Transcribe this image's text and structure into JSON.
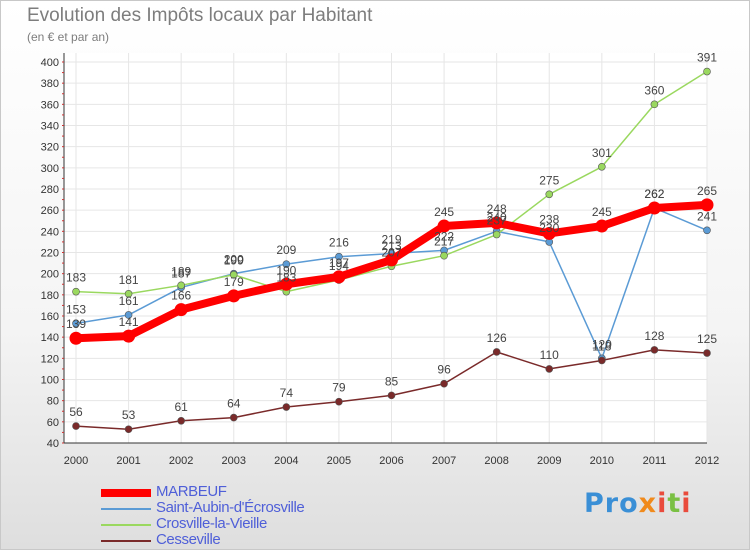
{
  "title": "Evolution des Impôts locaux par Habitant",
  "subtitle": "(en € et par an)",
  "brand": {
    "text": "Proxiti",
    "parts": [
      "Pro",
      "x",
      "i",
      "t",
      "i"
    ]
  },
  "chart_data": {
    "type": "line",
    "title": "Evolution des Impôts locaux par Habitant",
    "subtitle": "(en € et par an)",
    "xlabel": "",
    "ylabel": "",
    "ylim": [
      40,
      410
    ],
    "yticks": [
      40,
      60,
      80,
      100,
      120,
      140,
      160,
      180,
      200,
      220,
      240,
      260,
      280,
      300,
      320,
      340,
      360,
      380,
      400
    ],
    "x": [
      "2000",
      "2001",
      "2002",
      "2003",
      "2004",
      "2005",
      "2006",
      "2007",
      "2008",
      "2009",
      "2010",
      "2011",
      "2012"
    ],
    "grid": true,
    "legend_position": "bottom-left",
    "series": [
      {
        "name": "MARBEUF",
        "color": "#ff0000",
        "thick": true,
        "values": [
          139,
          141,
          166,
          179,
          190,
          197,
          213,
          245,
          248,
          238,
          245,
          262,
          265
        ]
      },
      {
        "name": "Saint-Aubin-d'Écrosville",
        "color": "#5b9bd5",
        "thick": false,
        "values": [
          153,
          161,
          187,
          200,
          209,
          216,
          219,
          222,
          240,
          230,
          120,
          262,
          241
        ]
      },
      {
        "name": "Crosville-la-Vieille",
        "color": "#9ad85f",
        "thick": false,
        "values": [
          183,
          181,
          189,
          199,
          183,
          194,
          207,
          217,
          237,
          275,
          301,
          360,
          391
        ]
      },
      {
        "name": "Cesseville",
        "color": "#7a2a2a",
        "thick": false,
        "values": [
          56,
          53,
          61,
          64,
          74,
          79,
          85,
          96,
          126,
          110,
          118,
          128,
          125
        ]
      }
    ]
  }
}
